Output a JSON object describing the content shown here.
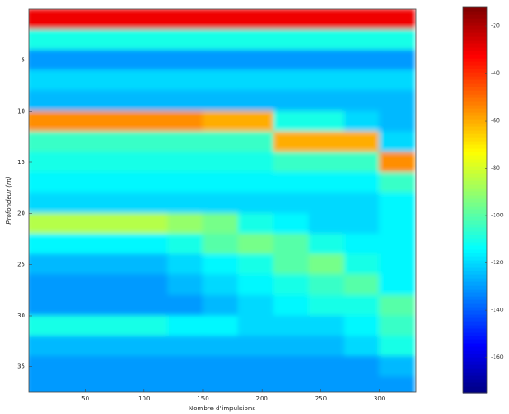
{
  "chart_data": {
    "type": "heatmap",
    "x_label": "Nombre d'impulsions",
    "y_label": "Profondeur (m)",
    "xlim": [
      2,
      331
    ],
    "xticks": [
      50,
      100,
      150,
      200,
      250,
      300
    ],
    "ylim": [
      0,
      37.5
    ],
    "yticks": [
      5,
      10,
      15,
      20,
      25,
      30,
      35
    ],
    "y_reversed": true,
    "x_bins": [
      0,
      30,
      60,
      90,
      120,
      150,
      180,
      210,
      240,
      270,
      300,
      330
    ],
    "y_bins": [
      0,
      2,
      4,
      6,
      8,
      10,
      12,
      14,
      16,
      18,
      20,
      22,
      24,
      26,
      28,
      30,
      32,
      34,
      36,
      38
    ],
    "z": [
      [
        -30,
        -30,
        -30,
        -30,
        -30,
        -30,
        -30,
        -30,
        -30,
        -30,
        -30
      ],
      [
        -110,
        -110,
        -110,
        -110,
        -110,
        -110,
        -110,
        -110,
        -110,
        -110,
        -110
      ],
      [
        -130,
        -130,
        -130,
        -130,
        -130,
        -130,
        -130,
        -130,
        -130,
        -130,
        -130
      ],
      [
        -120,
        -120,
        -120,
        -120,
        -120,
        -120,
        -120,
        -120,
        -120,
        -120,
        -120
      ],
      [
        -125,
        -125,
        -125,
        -125,
        -125,
        -125,
        -125,
        -125,
        -125,
        -125,
        -125
      ],
      [
        -55,
        -55,
        -55,
        -55,
        -55,
        -60,
        -60,
        -110,
        -110,
        -120,
        -125
      ],
      [
        -105,
        -105,
        -105,
        -105,
        -105,
        -105,
        -105,
        -60,
        -60,
        -60,
        -120
      ],
      [
        -110,
        -110,
        -110,
        -110,
        -110,
        -110,
        -110,
        -105,
        -105,
        -105,
        -55
      ],
      [
        -115,
        -115,
        -115,
        -115,
        -115,
        -115,
        -115,
        -115,
        -115,
        -115,
        -105
      ],
      [
        -120,
        -120,
        -120,
        -120,
        -120,
        -120,
        -120,
        -120,
        -120,
        -120,
        -115
      ],
      [
        -85,
        -85,
        -85,
        -85,
        -90,
        -95,
        -110,
        -115,
        -120,
        -120,
        -115
      ],
      [
        -115,
        -115,
        -115,
        -115,
        -110,
        -100,
        -95,
        -100,
        -110,
        -115,
        -115
      ],
      [
        -125,
        -125,
        -125,
        -125,
        -120,
        -115,
        -110,
        -100,
        -95,
        -110,
        -115
      ],
      [
        -130,
        -130,
        -130,
        -130,
        -125,
        -120,
        -115,
        -110,
        -105,
        -100,
        -115
      ],
      [
        -130,
        -130,
        -130,
        -130,
        -130,
        -125,
        -120,
        -115,
        -110,
        -110,
        -100
      ],
      [
        -110,
        -110,
        -110,
        -110,
        -115,
        -115,
        -120,
        -120,
        -120,
        -115,
        -105
      ],
      [
        -125,
        -125,
        -125,
        -125,
        -125,
        -125,
        -125,
        -125,
        -125,
        -120,
        -110
      ],
      [
        -130,
        -130,
        -130,
        -130,
        -130,
        -130,
        -130,
        -130,
        -130,
        -130,
        -125
      ],
      [
        -130,
        -130,
        -130,
        -130,
        -130,
        -130,
        -130,
        -130,
        -130,
        -130,
        -130
      ]
    ],
    "colormap": "jet",
    "clim": [
      -175,
      -12
    ],
    "cticks": [
      -20,
      -40,
      -60,
      -80,
      -100,
      -120,
      -140,
      -160
    ]
  }
}
